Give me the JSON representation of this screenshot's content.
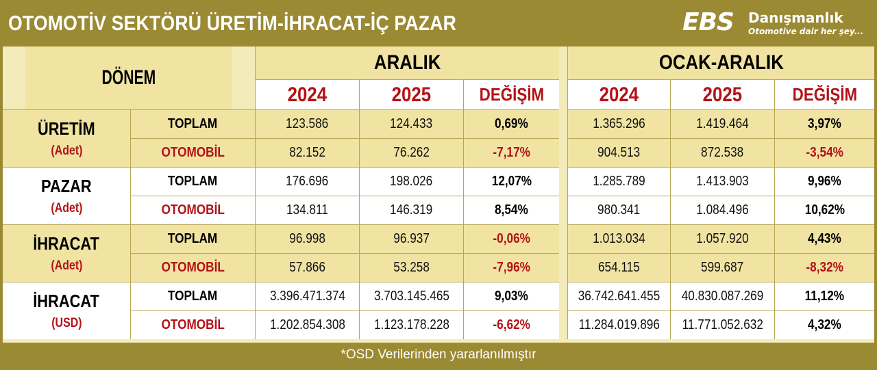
{
  "header": {
    "title": "OTOMOTİV SEKTÖRÜ  ÜRETİM-İHRACAT-İÇ PAZAR",
    "logo_mark": "EBS",
    "logo_name": "Danışmanlık",
    "logo_slogan": "Otomotive dair her şey..."
  },
  "table": {
    "period_label": "DÖNEM",
    "group_month": "ARALIK",
    "group_ytd": "OCAK-ARALIK",
    "year_a": "2024",
    "year_b": "2025",
    "change_label": "DEĞİŞİM",
    "categories": [
      {
        "name": "ÜRETİM",
        "unit": "(Adet)",
        "rows": [
          {
            "label": "TOPLAM",
            "m24": "123.586",
            "m25": "124.433",
            "mchg": "0,69%",
            "y24": "1.365.296",
            "y25": "1.419.464",
            "ychg": "3,97%"
          },
          {
            "label": "OTOMOBİL",
            "m24": "82.152",
            "m25": "76.262",
            "mchg": "-7,17%",
            "y24": "904.513",
            "y25": "872.538",
            "ychg": "-3,54%"
          }
        ]
      },
      {
        "name": "PAZAR",
        "unit": "(Adet)",
        "rows": [
          {
            "label": "TOPLAM",
            "m24": "176.696",
            "m25": "198.026",
            "mchg": "12,07%",
            "y24": "1.285.789",
            "y25": "1.413.903",
            "ychg": "9,96%"
          },
          {
            "label": "OTOMOBİL",
            "m24": "134.811",
            "m25": "146.319",
            "mchg": "8,54%",
            "y24": "980.341",
            "y25": "1.084.496",
            "ychg": "10,62%"
          }
        ]
      },
      {
        "name": "İHRACAT",
        "unit": "(Adet)",
        "rows": [
          {
            "label": "TOPLAM",
            "m24": "96.998",
            "m25": "96.937",
            "mchg": "-0,06%",
            "y24": "1.013.034",
            "y25": "1.057.920",
            "ychg": "4,43%"
          },
          {
            "label": "OTOMOBİL",
            "m24": "57.866",
            "m25": "53.258",
            "mchg": "-7,96%",
            "y24": "654.115",
            "y25": "599.687",
            "ychg": "-8,32%"
          }
        ]
      },
      {
        "name": "İHRACAT",
        "unit": "(USD)",
        "rows": [
          {
            "label": "TOPLAM",
            "m24": "3.396.471.374",
            "m25": "3.703.145.465",
            "mchg": "9,03%",
            "y24": "36.742.641.455",
            "y25": "40.830.087.269",
            "ychg": "11,12%"
          },
          {
            "label": "OTOMOBİL",
            "m24": "1.202.854.308",
            "m25": "1.123.178.228",
            "mchg": "-6,62%",
            "y24": "11.284.019.896",
            "y25": "11.771.052.632",
            "ychg": "4,32%"
          }
        ]
      }
    ]
  },
  "footer": {
    "note": "*OSD Verilerinden yararlanılmıştır"
  },
  "colors": {
    "olive": "#9b8a34",
    "tan": "#f1e4a2",
    "red": "#b31217"
  }
}
